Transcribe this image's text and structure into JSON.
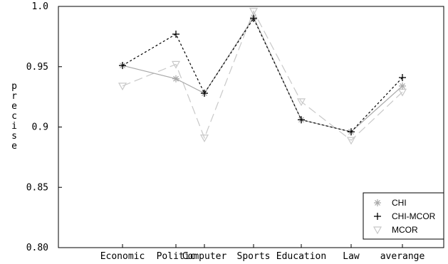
{
  "chart_data": {
    "type": "line",
    "categories": [
      "Economic",
      "Politic",
      "Computer",
      "Sports",
      "Education",
      "Law",
      "averange"
    ],
    "ylabel": "precise",
    "xlabel": "",
    "title": "",
    "ylim": [
      0.8,
      1.0
    ],
    "yticks": [
      "0.80",
      "0.85",
      "0.9",
      "0.95",
      "1.0"
    ],
    "grid": false,
    "legend_position": "bottom-right",
    "series": [
      {
        "name": "CHI",
        "values": [
          0.951,
          0.94,
          0.928,
          0.991,
          0.906,
          0.896,
          0.934
        ],
        "color": "#a8a8a8",
        "marker": "asterisk",
        "dash": ""
      },
      {
        "name": "CHI-MCOR",
        "values": [
          0.951,
          0.977,
          0.928,
          0.99,
          0.906,
          0.896,
          0.941
        ],
        "color": "#000000",
        "marker": "plus",
        "dash": "3,3"
      },
      {
        "name": "MCOR",
        "values": [
          0.934,
          0.952,
          0.891,
          0.996,
          0.921,
          0.889,
          0.929
        ],
        "color": "#c8c8c8",
        "marker": "triangle-down",
        "dash": "12,6"
      }
    ]
  }
}
